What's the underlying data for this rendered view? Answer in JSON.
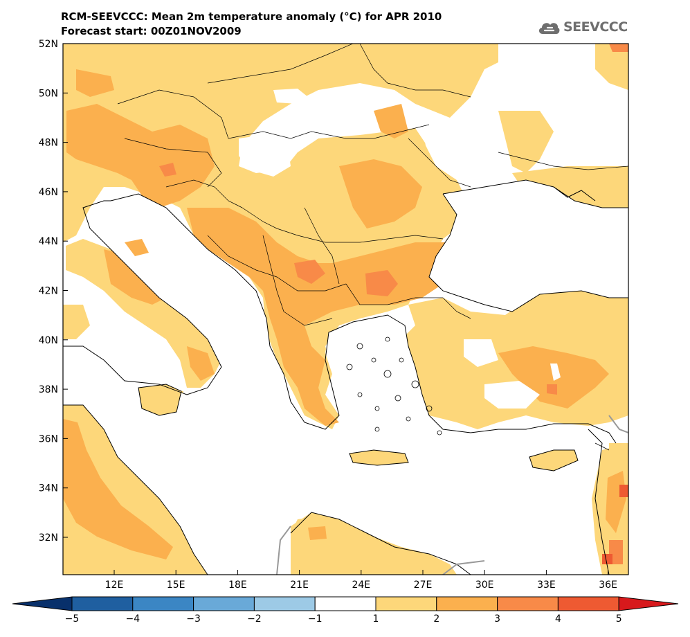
{
  "title": {
    "line1": "RCM-SEEVCCC: Mean 2m temperature anomaly (°C) for APR 2010",
    "line2": "Forecast start: 00Z01NOV2009"
  },
  "logo": {
    "text": "SEEVCCC",
    "icon": "cloud-icon"
  },
  "axes": {
    "lat_labels": [
      "52N",
      "50N",
      "48N",
      "46N",
      "44N",
      "42N",
      "40N",
      "38N",
      "36N",
      "34N",
      "32N"
    ],
    "lon_labels": [
      "12E",
      "15E",
      "18E",
      "21E",
      "24E",
      "27E",
      "30E",
      "33E",
      "36E"
    ]
  },
  "colorbar": {
    "labels": [
      "−5",
      "−4",
      "−3",
      "−2",
      "−1",
      "1",
      "2",
      "3",
      "4",
      "5"
    ],
    "bins": [
      {
        "range": "<-5",
        "color": "#08306b"
      },
      {
        "range": "-5 to -4",
        "color": "#1f5fa0"
      },
      {
        "range": "-4 to -3",
        "color": "#3b86c4"
      },
      {
        "range": "-3 to -2",
        "color": "#69a9d8"
      },
      {
        "range": "-2 to -1",
        "color": "#9dcae6"
      },
      {
        "range": "-1 to 1",
        "color": "#ffffff"
      },
      {
        "range": "1 to 2",
        "color": "#fdd77a"
      },
      {
        "range": "2 to 3",
        "color": "#fbb04e"
      },
      {
        "range": "3 to 4",
        "color": "#f88a48"
      },
      {
        "range": "4 to 5",
        "color": "#ee5a32"
      },
      {
        "range": ">5",
        "color": "#d7191c"
      }
    ]
  },
  "colors": {
    "sea": "#ffffff",
    "border": "#000000",
    "disputed_border": "#999999"
  }
}
